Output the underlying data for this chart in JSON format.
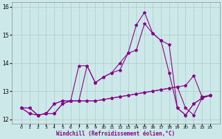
{
  "xlabel": "Windchill (Refroidissement éolien,°C)",
  "x": [
    0,
    1,
    2,
    3,
    4,
    5,
    6,
    7,
    8,
    9,
    10,
    11,
    12,
    13,
    14,
    15,
    16,
    17,
    18,
    19,
    20,
    21,
    22,
    23
  ],
  "line1": [
    12.4,
    12.4,
    12.15,
    12.2,
    12.55,
    12.65,
    12.65,
    12.65,
    12.65,
    12.65,
    12.7,
    12.75,
    12.8,
    12.85,
    12.9,
    12.95,
    13.0,
    13.05,
    13.1,
    13.15,
    13.2,
    13.55,
    12.8,
    12.85
  ],
  "line2": [
    12.4,
    12.4,
    12.15,
    12.2,
    12.55,
    12.65,
    12.65,
    12.65,
    12.65,
    12.65,
    12.7,
    12.75,
    12.8,
    12.85,
    12.9,
    12.95,
    13.0,
    13.05,
    13.1,
    13.15,
    12.4,
    12.15,
    12.75,
    12.85
  ],
  "line3": [
    12.4,
    12.2,
    12.15,
    12.2,
    12.2,
    12.55,
    12.65,
    12.65,
    13.9,
    13.3,
    13.5,
    13.65,
    13.75,
    14.35,
    14.45,
    15.4,
    15.05,
    14.8,
    13.65,
    12.4,
    12.15,
    12.55,
    12.75,
    12.85
  ],
  "line4": [
    12.4,
    12.2,
    12.15,
    12.2,
    12.2,
    12.55,
    12.65,
    13.9,
    13.9,
    13.3,
    13.5,
    13.65,
    14.0,
    14.35,
    15.35,
    15.8,
    15.05,
    14.8,
    14.65,
    12.4,
    12.15,
    12.55,
    12.75,
    12.85
  ],
  "line_color": "#8B008B",
  "bg_color": "#cce8e8",
  "grid_color": "#aacccc",
  "ylim": [
    11.85,
    16.15
  ],
  "yticks": [
    12,
    13,
    14,
    15,
    16
  ],
  "xticks": [
    0,
    1,
    2,
    3,
    4,
    5,
    6,
    7,
    8,
    9,
    10,
    11,
    12,
    13,
    14,
    15,
    16,
    17,
    18,
    19,
    20,
    21,
    22,
    23
  ]
}
